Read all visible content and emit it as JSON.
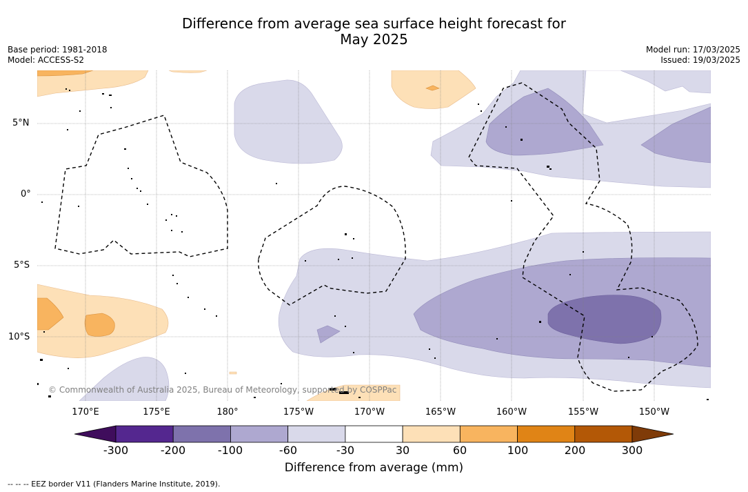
{
  "title": {
    "line1": "Difference from average sea surface height forecast for",
    "line2": "May 2025"
  },
  "meta": {
    "base_period": "Base period: 1981-2018",
    "model": "Model: ACCESS-S2",
    "model_run": "Model run: 17/03/2025",
    "issued": "Issued: 19/03/2025"
  },
  "map": {
    "lat_labels": [
      "5°N",
      "0°",
      "5°S",
      "10°S"
    ],
    "lon_labels": [
      "170°E",
      "175°E",
      "180°",
      "175°W",
      "170°W",
      "165°W",
      "160°W",
      "155°W",
      "150°W"
    ],
    "copyright": "© Commonwealth of Australia 2025, Bureau of Meteorology, supported by COSPPac",
    "eez_line_style": "dashed",
    "grid": true
  },
  "colorbar": {
    "label": "Difference from average (mm)",
    "ticks": [
      "-300",
      "-200",
      "-100",
      "-60",
      "-30",
      "30",
      "60",
      "100",
      "200",
      "300"
    ],
    "colors": [
      "#3f0d5c",
      "#54278f",
      "#7e72ac",
      "#aea8d0",
      "#d9d9ea",
      "#ffffff",
      "#fde0b7",
      "#f8b45f",
      "#e08416",
      "#b35806",
      "#7f3b08"
    ]
  },
  "legend": {
    "eez": "--  --  -- EEZ border V11 (Flanders Marine Institute, 2019)."
  }
}
